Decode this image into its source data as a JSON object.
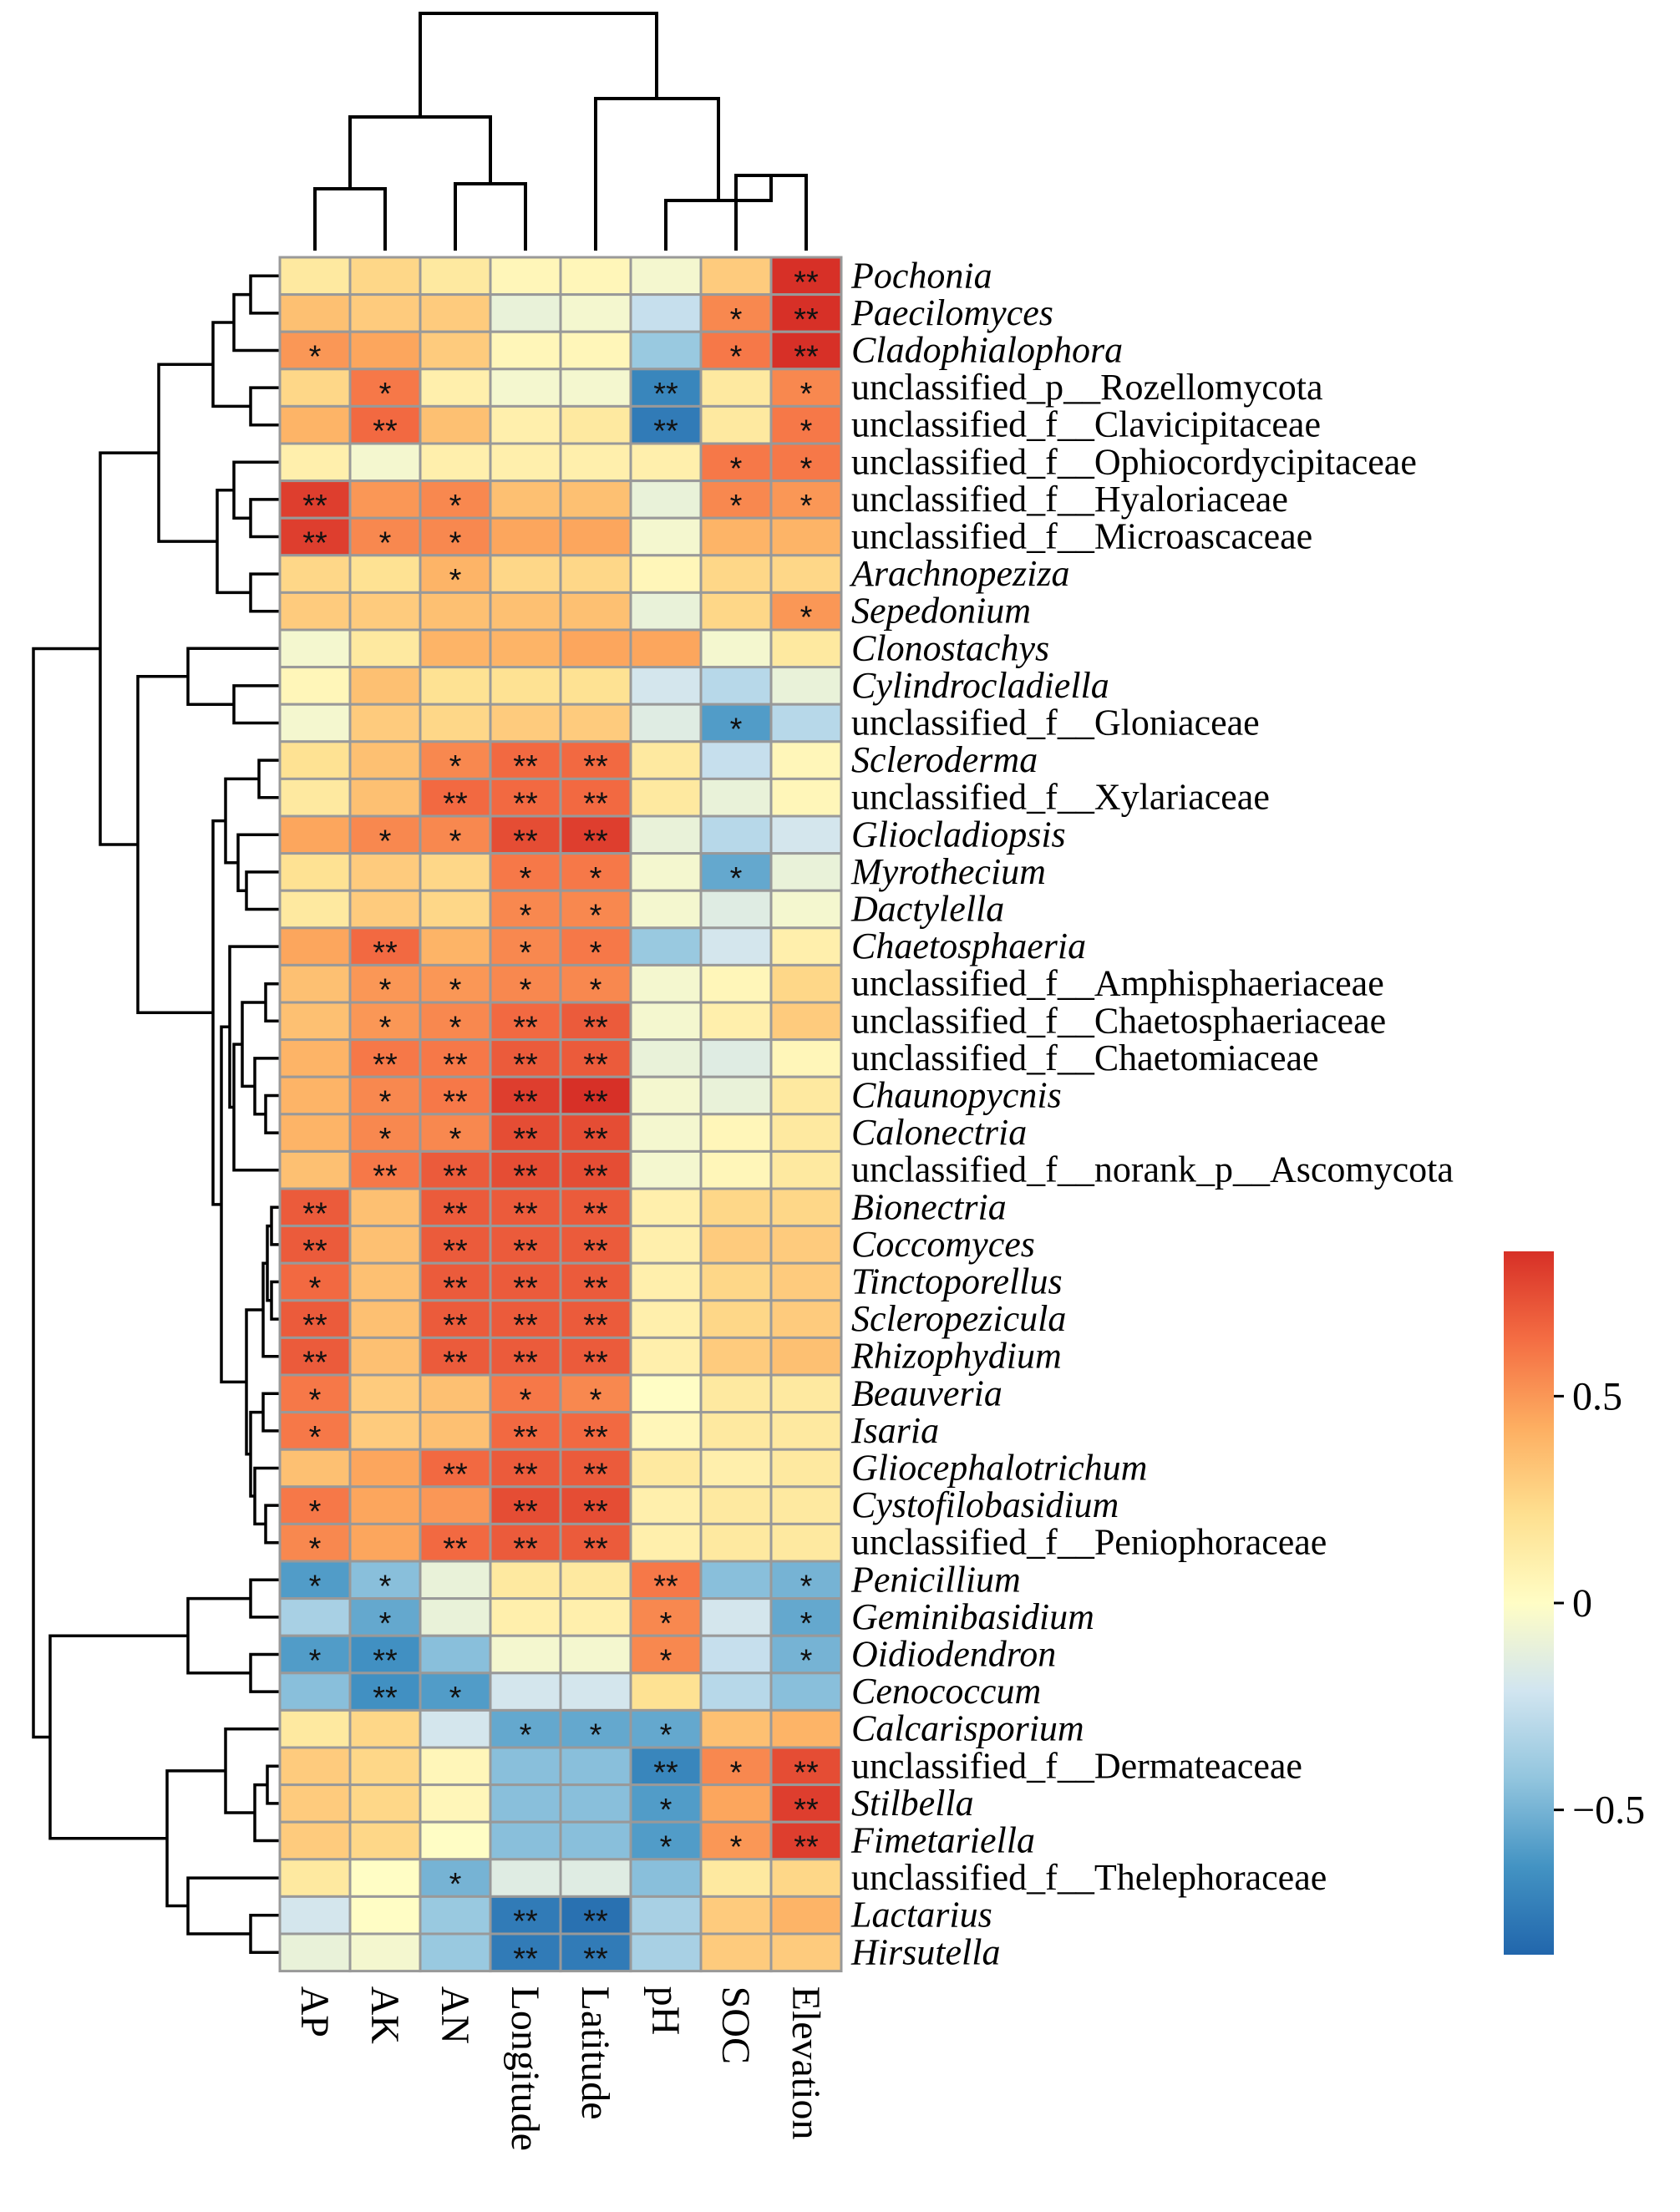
{
  "chart_data": {
    "type": "heatmap",
    "title": "",
    "columns": [
      "AP",
      "AK",
      "AN",
      "Longitude",
      "Latitude",
      "pH",
      "SOC",
      "Elevation"
    ],
    "rows": [
      {
        "name": "Pochonia",
        "italic": true,
        "values": [
          0.15,
          0.25,
          0.15,
          0.05,
          0.05,
          -0.05,
          0.3,
          0.85
        ],
        "sig": [
          "",
          "",
          "",
          "",
          "",
          "",
          "",
          "**"
        ]
      },
      {
        "name": "Paecilomyces",
        "italic": true,
        "values": [
          0.35,
          0.3,
          0.3,
          -0.1,
          -0.05,
          -0.25,
          0.55,
          0.85
        ],
        "sig": [
          "",
          "",
          "",
          "",
          "",
          "",
          "*",
          "**"
        ]
      },
      {
        "name": "Cladophialophora",
        "italic": true,
        "values": [
          0.5,
          0.45,
          0.3,
          0.05,
          0.05,
          -0.4,
          0.6,
          0.85
        ],
        "sig": [
          "*",
          "",
          "",
          "",
          "",
          "",
          "*",
          "**"
        ]
      },
      {
        "name": "unclassified_p__Rozellomycota",
        "italic": false,
        "values": [
          0.25,
          0.6,
          0.1,
          -0.05,
          -0.05,
          -0.7,
          0.15,
          0.55
        ],
        "sig": [
          "",
          "*",
          "",
          "",
          "",
          "**",
          "",
          "*"
        ]
      },
      {
        "name": "unclassified_f__Clavicipitaceae",
        "italic": false,
        "values": [
          0.4,
          0.65,
          0.35,
          0.1,
          0.15,
          -0.75,
          0.15,
          0.6
        ],
        "sig": [
          "",
          "**",
          "",
          "",
          "",
          "**",
          "",
          "*"
        ]
      },
      {
        "name": "unclassified_f__Ophiocordycipitaceae",
        "italic": false,
        "values": [
          0.1,
          -0.05,
          0.1,
          0.1,
          0.1,
          0.1,
          0.6,
          0.6
        ],
        "sig": [
          "",
          "",
          "",
          "",
          "",
          "",
          "*",
          "*"
        ]
      },
      {
        "name": "unclassified_f__Hyaloriaceae",
        "italic": false,
        "values": [
          0.8,
          0.5,
          0.55,
          0.35,
          0.35,
          -0.1,
          0.55,
          0.5
        ],
        "sig": [
          "**",
          "",
          "*",
          "",
          "",
          "",
          "*",
          "*"
        ]
      },
      {
        "name": "unclassified_f__Microascaceae",
        "italic": false,
        "values": [
          0.8,
          0.55,
          0.55,
          0.45,
          0.45,
          -0.05,
          0.4,
          0.4
        ],
        "sig": [
          "**",
          "*",
          "*",
          "",
          "",
          "",
          "",
          ""
        ]
      },
      {
        "name": "Arachnopeziza",
        "italic": true,
        "values": [
          0.25,
          0.2,
          0.4,
          0.25,
          0.25,
          0.05,
          0.25,
          0.25
        ],
        "sig": [
          "",
          "",
          "*",
          "",
          "",
          "",
          "",
          ""
        ]
      },
      {
        "name": "Sepedonium",
        "italic": true,
        "values": [
          0.3,
          0.3,
          0.35,
          0.35,
          0.35,
          -0.1,
          0.25,
          0.5
        ],
        "sig": [
          "",
          "",
          "",
          "",
          "",
          "",
          "",
          "*"
        ]
      },
      {
        "name": "Clonostachys",
        "italic": true,
        "values": [
          -0.05,
          0.15,
          0.4,
          0.4,
          0.45,
          0.45,
          -0.05,
          0.15
        ],
        "sig": [
          "",
          "",
          "",
          "",
          "",
          "",
          "",
          ""
        ]
      },
      {
        "name": "Cylindrocladiella",
        "italic": true,
        "values": [
          0.05,
          0.35,
          0.2,
          0.2,
          0.2,
          -0.2,
          -0.3,
          -0.1
        ],
        "sig": [
          "",
          "",
          "",
          "",
          "",
          "",
          "",
          ""
        ]
      },
      {
        "name": "unclassified_f__Gloniaceae",
        "italic": false,
        "values": [
          -0.05,
          0.3,
          0.25,
          0.3,
          0.3,
          -0.15,
          -0.6,
          -0.3
        ],
        "sig": [
          "",
          "",
          "",
          "",
          "",
          "",
          "*",
          ""
        ]
      },
      {
        "name": "Scleroderma",
        "italic": true,
        "values": [
          0.2,
          0.35,
          0.55,
          0.65,
          0.65,
          0.15,
          -0.25,
          0.05
        ],
        "sig": [
          "",
          "",
          "*",
          "**",
          "**",
          "",
          "",
          ""
        ]
      },
      {
        "name": "unclassified_f__Xylariaceae",
        "italic": false,
        "values": [
          0.15,
          0.35,
          0.65,
          0.65,
          0.65,
          0.15,
          -0.1,
          0.05
        ],
        "sig": [
          "",
          "",
          "**",
          "**",
          "**",
          "",
          "",
          ""
        ]
      },
      {
        "name": "Gliocladiopsis",
        "italic": true,
        "values": [
          0.45,
          0.55,
          0.55,
          0.75,
          0.8,
          -0.1,
          -0.3,
          -0.2
        ],
        "sig": [
          "",
          "*",
          "*",
          "**",
          "**",
          "",
          "",
          ""
        ]
      },
      {
        "name": "Myrothecium",
        "italic": true,
        "values": [
          0.2,
          0.3,
          0.25,
          0.6,
          0.6,
          -0.05,
          -0.55,
          -0.1
        ],
        "sig": [
          "",
          "",
          "",
          "*",
          "*",
          "",
          "*",
          ""
        ]
      },
      {
        "name": "Dactylella",
        "italic": true,
        "values": [
          0.15,
          0.3,
          0.25,
          0.55,
          0.55,
          -0.05,
          -0.15,
          -0.05
        ],
        "sig": [
          "",
          "",
          "",
          "*",
          "*",
          "",
          "",
          ""
        ]
      },
      {
        "name": "Chaetosphaeria",
        "italic": true,
        "values": [
          0.45,
          0.65,
          0.4,
          0.55,
          0.6,
          -0.4,
          -0.2,
          0.1
        ],
        "sig": [
          "",
          "**",
          "",
          "*",
          "*",
          "",
          "",
          ""
        ]
      },
      {
        "name": "unclassified_f__Amphisphaeriaceae",
        "italic": false,
        "values": [
          0.35,
          0.5,
          0.5,
          0.55,
          0.55,
          -0.05,
          0.05,
          0.25
        ],
        "sig": [
          "",
          "*",
          "*",
          "*",
          "*",
          "",
          "",
          ""
        ]
      },
      {
        "name": "unclassified_f__Chaetosphaeriaceae",
        "italic": false,
        "values": [
          0.35,
          0.5,
          0.55,
          0.65,
          0.7,
          -0.05,
          0.1,
          0.3
        ],
        "sig": [
          "",
          "*",
          "*",
          "**",
          "**",
          "",
          "",
          ""
        ]
      },
      {
        "name": "unclassified_f__Chaetomiaceae",
        "italic": false,
        "values": [
          0.4,
          0.6,
          0.6,
          0.7,
          0.7,
          -0.1,
          -0.15,
          0.05
        ],
        "sig": [
          "",
          "**",
          "**",
          "**",
          "**",
          "",
          "",
          ""
        ]
      },
      {
        "name": "Chaunopycnis",
        "italic": true,
        "values": [
          0.4,
          0.55,
          0.6,
          0.8,
          0.85,
          -0.05,
          -0.1,
          0.15
        ],
        "sig": [
          "",
          "*",
          "**",
          "**",
          "**",
          "",
          "",
          ""
        ]
      },
      {
        "name": "Calonectria",
        "italic": true,
        "values": [
          0.4,
          0.55,
          0.55,
          0.75,
          0.75,
          -0.05,
          0.05,
          0.15
        ],
        "sig": [
          "",
          "*",
          "*",
          "**",
          "**",
          "",
          "",
          ""
        ]
      },
      {
        "name": "unclassified_f__norank_p__Ascomycota",
        "italic": false,
        "values": [
          0.35,
          0.6,
          0.7,
          0.75,
          0.75,
          -0.05,
          0.05,
          0.15
        ],
        "sig": [
          "",
          "**",
          "**",
          "**",
          "**",
          "",
          "",
          ""
        ]
      },
      {
        "name": "Bionectria",
        "italic": true,
        "values": [
          0.7,
          0.35,
          0.7,
          0.7,
          0.7,
          0.1,
          0.25,
          0.25
        ],
        "sig": [
          "**",
          "",
          "**",
          "**",
          "**",
          "",
          "",
          ""
        ]
      },
      {
        "name": "Coccomyces",
        "italic": true,
        "values": [
          0.7,
          0.35,
          0.7,
          0.7,
          0.7,
          0.1,
          0.3,
          0.3
        ],
        "sig": [
          "**",
          "",
          "**",
          "**",
          "**",
          "",
          "",
          ""
        ]
      },
      {
        "name": "Tinctoporellus",
        "italic": true,
        "values": [
          0.65,
          0.35,
          0.7,
          0.7,
          0.7,
          0.1,
          0.25,
          0.3
        ],
        "sig": [
          "*",
          "",
          "**",
          "**",
          "**",
          "",
          "",
          ""
        ]
      },
      {
        "name": "Scleropezicula",
        "italic": true,
        "values": [
          0.7,
          0.35,
          0.7,
          0.7,
          0.7,
          0.1,
          0.25,
          0.3
        ],
        "sig": [
          "**",
          "",
          "**",
          "**",
          "**",
          "",
          "",
          ""
        ]
      },
      {
        "name": "Rhizophydium",
        "italic": true,
        "values": [
          0.7,
          0.35,
          0.7,
          0.7,
          0.7,
          0.1,
          0.3,
          0.35
        ],
        "sig": [
          "**",
          "",
          "**",
          "**",
          "**",
          "",
          "",
          ""
        ]
      },
      {
        "name": "Beauveria",
        "italic": true,
        "values": [
          0.6,
          0.3,
          0.35,
          0.6,
          0.55,
          0.0,
          0.15,
          0.15
        ],
        "sig": [
          "*",
          "",
          "",
          "*",
          "*",
          "",
          "",
          ""
        ]
      },
      {
        "name": "Isaria",
        "italic": true,
        "values": [
          0.6,
          0.3,
          0.35,
          0.65,
          0.65,
          0.05,
          0.15,
          0.15
        ],
        "sig": [
          "*",
          "",
          "",
          "**",
          "**",
          "",
          "",
          ""
        ]
      },
      {
        "name": "Gliocephalotrichum",
        "italic": true,
        "values": [
          0.35,
          0.45,
          0.65,
          0.7,
          0.7,
          0.15,
          0.1,
          0.15
        ],
        "sig": [
          "",
          "",
          "**",
          "**",
          "**",
          "",
          "",
          ""
        ]
      },
      {
        "name": "Cystofilobasidium",
        "italic": true,
        "values": [
          0.6,
          0.45,
          0.5,
          0.75,
          0.75,
          0.1,
          0.15,
          0.15
        ],
        "sig": [
          "*",
          "",
          "",
          "**",
          "**",
          "",
          "",
          ""
        ]
      },
      {
        "name": "unclassified_f__Peniophoraceae",
        "italic": false,
        "values": [
          0.55,
          0.45,
          0.65,
          0.7,
          0.7,
          0.1,
          0.15,
          0.15
        ],
        "sig": [
          "*",
          "",
          "**",
          "**",
          "**",
          "",
          "",
          ""
        ]
      },
      {
        "name": "Penicillium",
        "italic": true,
        "values": [
          -0.6,
          -0.45,
          -0.1,
          0.15,
          0.15,
          0.6,
          -0.45,
          -0.5
        ],
        "sig": [
          "*",
          "*",
          "",
          "",
          "",
          "**",
          "",
          "*"
        ]
      },
      {
        "name": "Geminibasidium",
        "italic": true,
        "values": [
          -0.35,
          -0.55,
          -0.1,
          0.1,
          0.1,
          0.55,
          -0.2,
          -0.55
        ],
        "sig": [
          "",
          "*",
          "",
          "",
          "",
          "*",
          "",
          "*"
        ]
      },
      {
        "name": "Oidiodendron",
        "italic": true,
        "values": [
          -0.6,
          -0.65,
          -0.45,
          -0.05,
          -0.05,
          0.55,
          -0.25,
          -0.5
        ],
        "sig": [
          "*",
          "**",
          "",
          "",
          "",
          "*",
          "",
          "*"
        ]
      },
      {
        "name": "Cenococcum",
        "italic": true,
        "values": [
          -0.45,
          -0.65,
          -0.6,
          -0.2,
          -0.2,
          0.2,
          -0.3,
          -0.45
        ],
        "sig": [
          "",
          "**",
          "*",
          "",
          "",
          "",
          "",
          ""
        ]
      },
      {
        "name": "Calcarisporium",
        "italic": true,
        "values": [
          0.15,
          0.25,
          -0.2,
          -0.55,
          -0.55,
          -0.55,
          0.35,
          0.4
        ],
        "sig": [
          "",
          "",
          "",
          "*",
          "*",
          "*",
          "",
          ""
        ]
      },
      {
        "name": "unclassified_f__Dermateaceae",
        "italic": false,
        "values": [
          0.3,
          0.25,
          0.05,
          -0.45,
          -0.45,
          -0.7,
          0.55,
          0.75
        ],
        "sig": [
          "",
          "",
          "",
          "",
          "",
          "**",
          "*",
          "**"
        ]
      },
      {
        "name": "Stilbella",
        "italic": true,
        "values": [
          0.3,
          0.25,
          0.05,
          -0.45,
          -0.45,
          -0.6,
          0.45,
          0.8
        ],
        "sig": [
          "",
          "",
          "",
          "",
          "",
          "*",
          "",
          "**"
        ]
      },
      {
        "name": "Fimetariella",
        "italic": true,
        "values": [
          0.3,
          0.25,
          0.0,
          -0.45,
          -0.45,
          -0.6,
          0.5,
          0.8
        ],
        "sig": [
          "",
          "",
          "",
          "",
          "",
          "*",
          "*",
          "**"
        ]
      },
      {
        "name": "unclassified_f__Thelephoraceae",
        "italic": false,
        "values": [
          0.15,
          0.0,
          -0.5,
          -0.15,
          -0.15,
          -0.45,
          0.15,
          0.25
        ],
        "sig": [
          "",
          "",
          "*",
          "",
          "",
          "",
          "",
          ""
        ]
      },
      {
        "name": "Lactarius",
        "italic": true,
        "values": [
          -0.2,
          0.0,
          -0.4,
          -0.75,
          -0.8,
          -0.35,
          0.3,
          0.4
        ],
        "sig": [
          "",
          "",
          "",
          "**",
          "**",
          "",
          "",
          ""
        ]
      },
      {
        "name": "Hirsutella",
        "italic": true,
        "values": [
          -0.1,
          -0.05,
          -0.4,
          -0.75,
          -0.75,
          -0.35,
          0.3,
          0.3
        ],
        "sig": [
          "",
          "",
          "",
          "**",
          "**",
          "",
          "",
          ""
        ]
      }
    ],
    "legend": {
      "ticks": [
        0.5,
        0,
        -0.5
      ],
      "tick_labels": [
        "0.5",
        "0",
        "−0.5"
      ],
      "range": [
        -0.85,
        0.85
      ],
      "placement": "right"
    },
    "col_dendrogram": true,
    "row_dendrogram": true
  },
  "colors": {
    "scale": [
      "#2166ac",
      "#4393c3",
      "#92c5de",
      "#d1e5f0",
      "#fffdc5",
      "#fee090",
      "#fdae61",
      "#f46d43",
      "#d73027"
    ],
    "grid": "#999999",
    "line": "#000000"
  }
}
